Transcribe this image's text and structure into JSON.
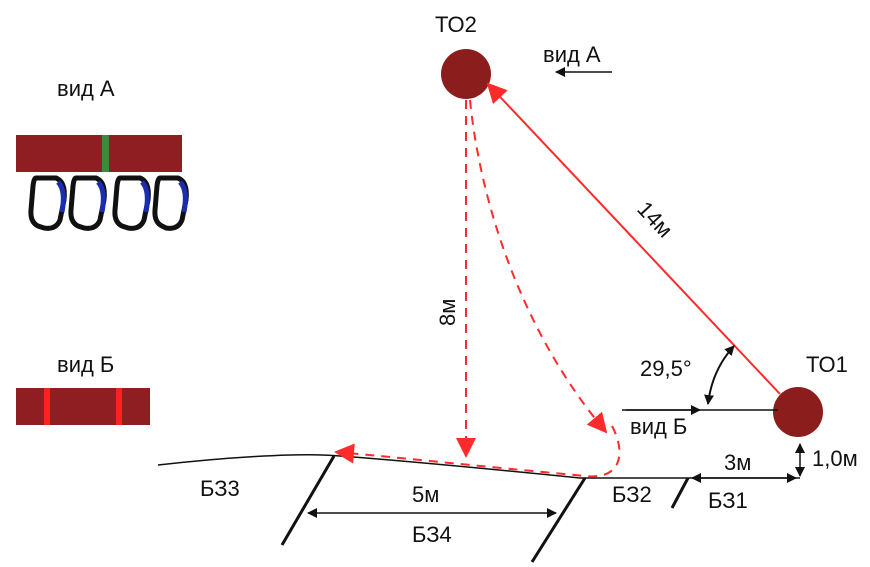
{
  "colors": {
    "point_fill": "#8c1d1d",
    "bar_fill": "#8f1e22",
    "green_mark": "#3a8c3a",
    "red_mark": "#ff2020",
    "arrow_red": "#ff2a2a",
    "carabiner_blue": "#1a2db0",
    "line_dark": "#111111"
  },
  "labels": {
    "view_a_legend": "вид А",
    "view_b_legend": "вид Б",
    "to1": "ТО1",
    "to2": "ТО2",
    "view_a_arrow": "вид А",
    "view_b_arrow": "вид Б",
    "dist_14": "14м",
    "dist_8": "8м",
    "angle": "29,5°",
    "dist_5": "5м",
    "dist_3": "3м",
    "height": "1,0м",
    "bz1": "БЗ1",
    "bz2": "БЗ2",
    "bz3": "БЗ3",
    "bz4": "БЗ4"
  },
  "icons": [
    "carabiner-icon",
    "arrow-left-icon"
  ]
}
